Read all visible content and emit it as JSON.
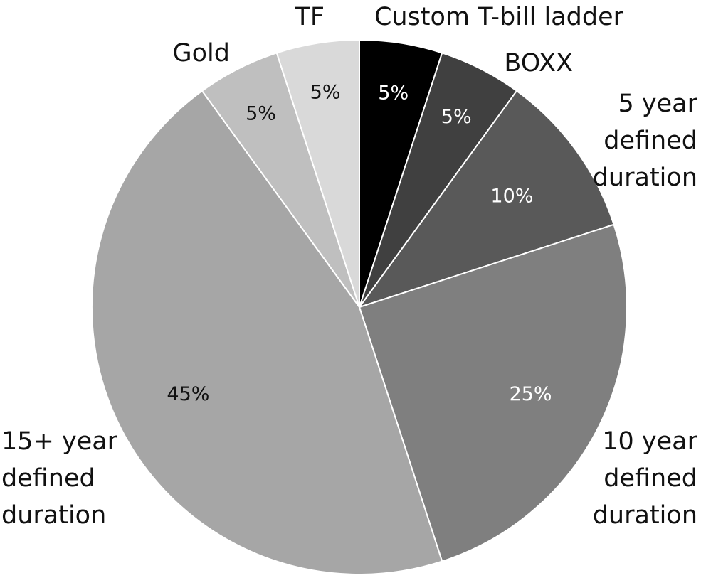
{
  "chart_data": {
    "type": "pie",
    "title": "",
    "slices": [
      {
        "label": "Custom T-bill ladder",
        "lines": [
          "Custom T-bill ladder"
        ],
        "value": 5,
        "value_label": "5%",
        "color": "#000000",
        "text_color": "#ffffff"
      },
      {
        "label": "BOXX",
        "lines": [
          "BOXX"
        ],
        "value": 5,
        "value_label": "5%",
        "color": "#404040",
        "text_color": "#ffffff"
      },
      {
        "label": "5 year defined duration",
        "lines": [
          "5 year",
          "defined",
          "duration"
        ],
        "value": 10,
        "value_label": "10%",
        "color": "#595959",
        "text_color": "#ffffff"
      },
      {
        "label": "10 year defined duration",
        "lines": [
          "10 year",
          "defined",
          "duration"
        ],
        "value": 25,
        "value_label": "25%",
        "color": "#7f7f7f",
        "text_color": "#ffffff"
      },
      {
        "label": "15+ year defined duration",
        "lines": [
          "15+ year",
          "defined",
          "duration"
        ],
        "value": 45,
        "value_label": "45%",
        "color": "#a6a6a6",
        "text_color": "#111111"
      },
      {
        "label": "Gold",
        "lines": [
          "Gold"
        ],
        "value": 5,
        "value_label": "5%",
        "color": "#bfbfbf",
        "text_color": "#111111"
      },
      {
        "label": "TF",
        "lines": [
          "TF"
        ],
        "value": 5,
        "value_label": "5%",
        "color": "#d9d9d9",
        "text_color": "#111111"
      }
    ],
    "start_angle": "12 o'clock",
    "direction": "clockwise",
    "legend": "none"
  }
}
